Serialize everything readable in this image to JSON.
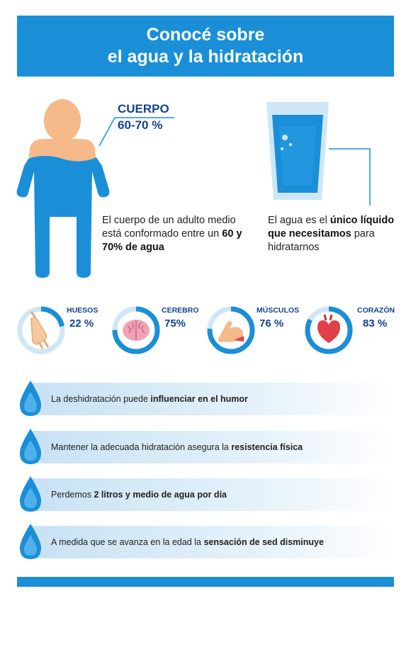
{
  "header": {
    "line1": "Conocé sobre",
    "line2": "el agua y la hidratación"
  },
  "body_section": {
    "label": "CUERPO",
    "percent": "60-70 %",
    "desc_pre": "El cuerpo de un adulto medio está conformado entre un ",
    "desc_bold": "60 y 70% de agua"
  },
  "water_section": {
    "desc_pre": "El agua es el ",
    "desc_bold": "único líquido que necesitamos",
    "desc_post": " para hidratarnos"
  },
  "organs": [
    {
      "name": "HUESOS",
      "percent": "22 %",
      "value": 22,
      "icon": "bones-icon"
    },
    {
      "name": "CEREBRO",
      "percent": "75%",
      "value": 75,
      "icon": "brain-icon"
    },
    {
      "name": "MÚSCULOS",
      "percent": "76 %",
      "value": 76,
      "icon": "muscle-icon"
    },
    {
      "name": "CORAZÓN",
      "percent": "83 %",
      "value": 83,
      "icon": "heart-icon"
    }
  ],
  "facts": [
    {
      "pre": "La deshidratación puede ",
      "bold": "influenciar en el humor",
      "post": ""
    },
    {
      "pre": "Mantener la adecuada hidratación asegura la ",
      "bold": "resistencia física",
      "post": ""
    },
    {
      "pre": "Perdemos ",
      "bold": "2 litros y medio de agua por día",
      "post": ""
    },
    {
      "pre": "A medida que se avanza en la edad la ",
      "bold": "sensación de sed disminuye",
      "post": ""
    }
  ],
  "colors": {
    "primary_blue": "#1a8fd8",
    "dark_blue": "#11448f",
    "light_blue": "#cfe6f6",
    "skin": "#f5b98a",
    "heart_red": "#e0404a",
    "brain_pink": "#f0a3b6"
  }
}
